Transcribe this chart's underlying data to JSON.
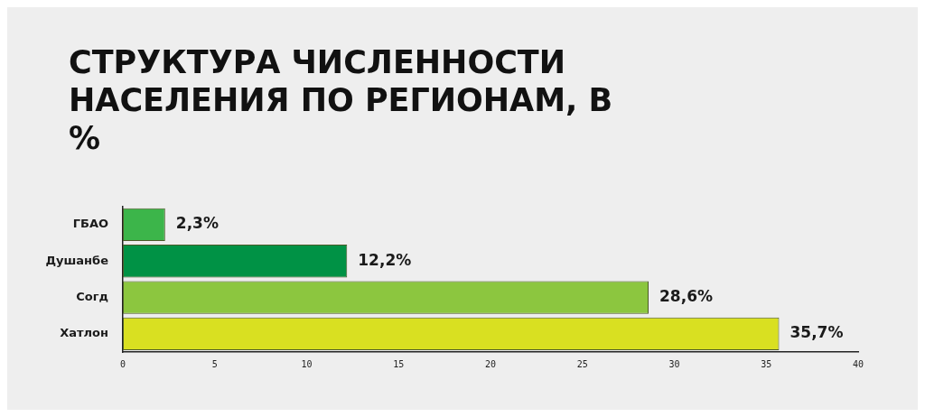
{
  "chart_data": {
    "type": "bar",
    "orientation": "horizontal",
    "title": "СТРУКТУРА ЧИСЛЕННОСТИ НАСЕЛЕНИЯ ПО РЕГИОНАМ, В %",
    "categories": [
      "ГБАО",
      "Душанбе",
      "Согд",
      "Хатлон"
    ],
    "values": [
      2.3,
      12.2,
      28.6,
      35.7
    ],
    "colors": [
      "#3cb54a",
      "#009245",
      "#8cc63f",
      "#d9e021"
    ],
    "value_labels": [
      "2,3%",
      "12,2%",
      "28,6%",
      "35,7%"
    ],
    "xlim": [
      0,
      40
    ],
    "xticks": [
      0,
      5,
      10,
      15,
      20,
      25,
      30,
      35,
      40
    ],
    "grid": false,
    "legend": false
  }
}
